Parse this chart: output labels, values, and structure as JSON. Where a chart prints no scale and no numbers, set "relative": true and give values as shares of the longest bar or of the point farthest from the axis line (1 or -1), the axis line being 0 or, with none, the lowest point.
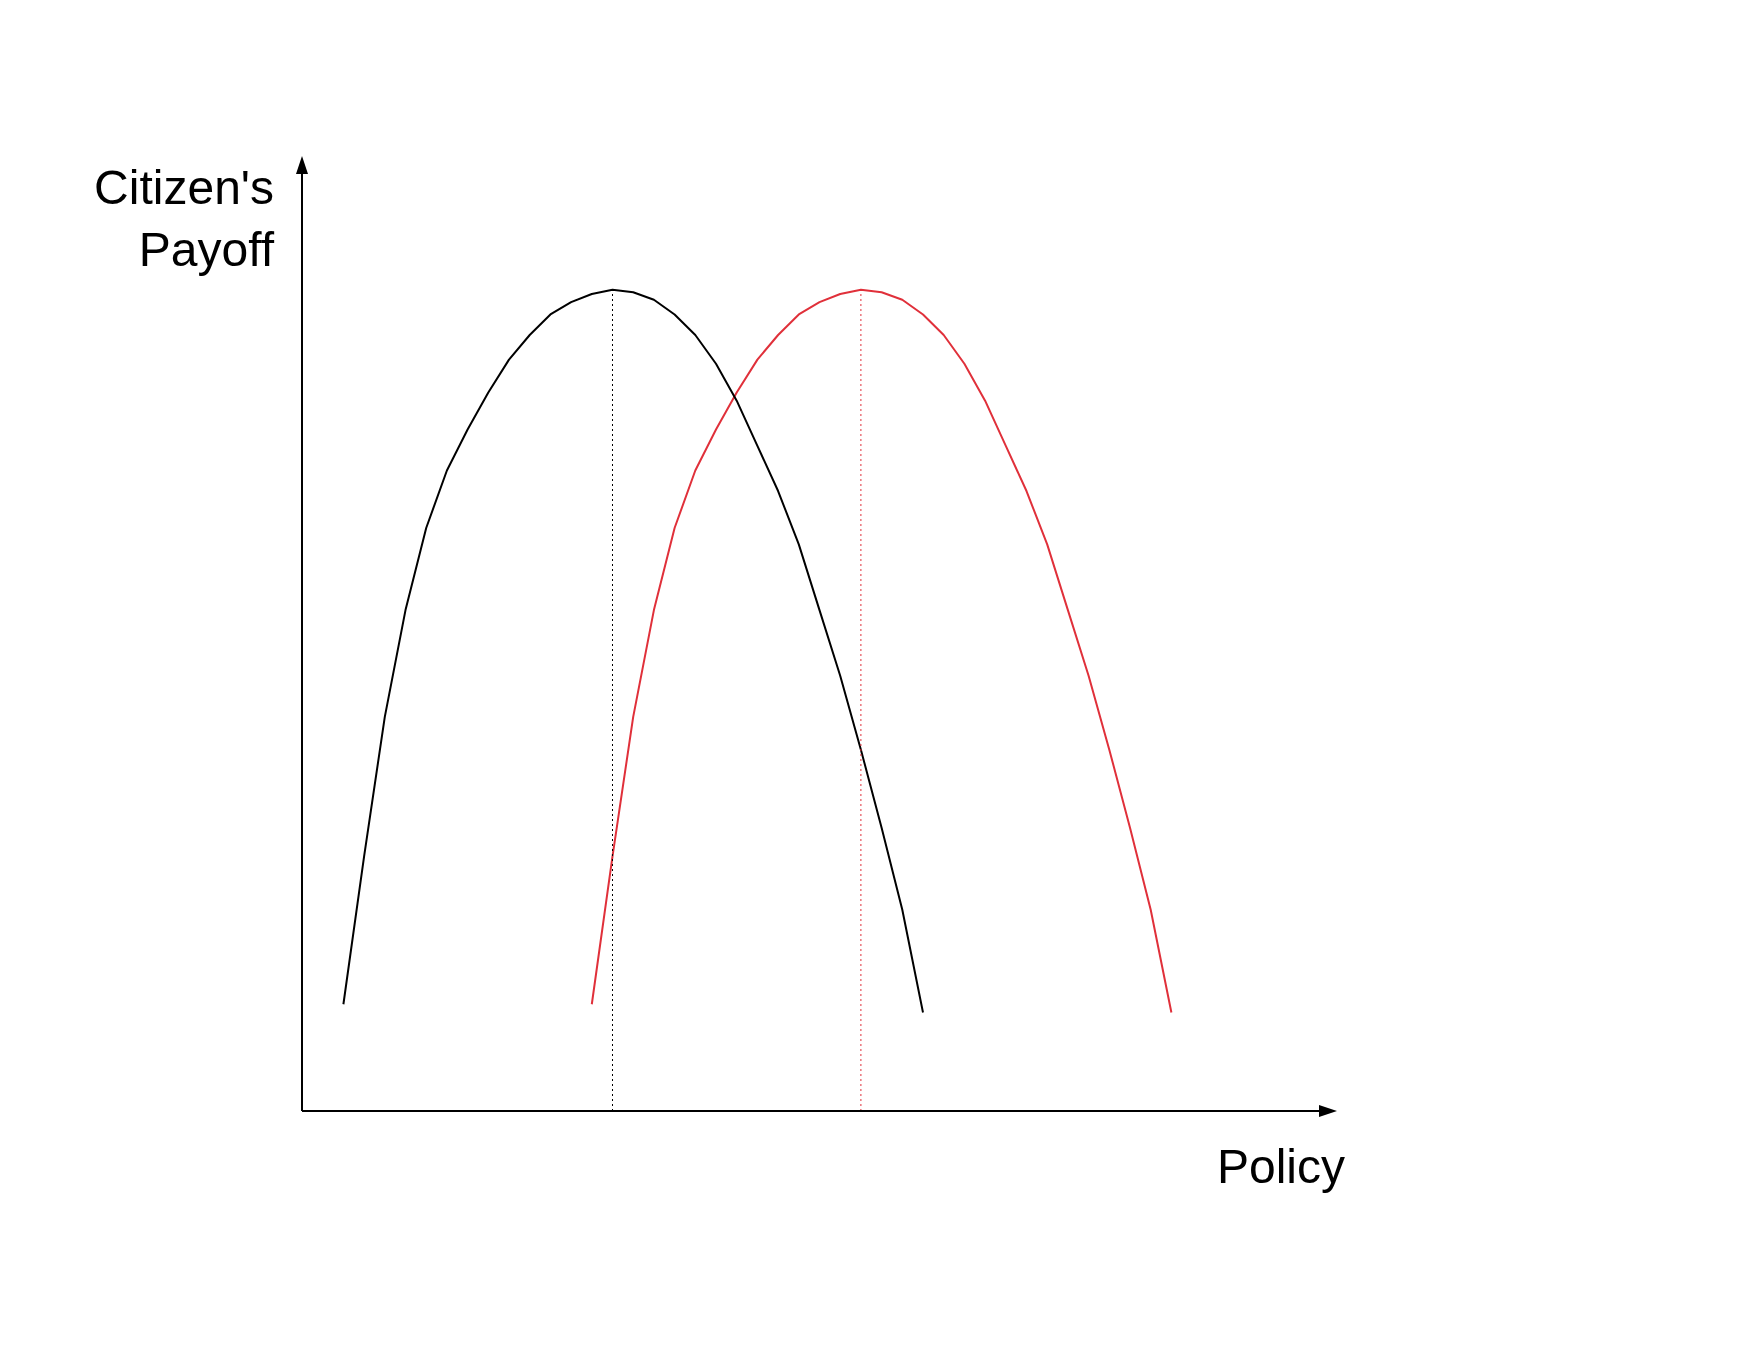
{
  "chart_data": {
    "type": "line",
    "relative": true,
    "xlabel": "Policy",
    "ylabel": "Citizen's\nPayoff",
    "legend": false,
    "grid": false,
    "marker": "none",
    "line_style": "solid",
    "categories": [
      null,
      null,
      null,
      null,
      null,
      null,
      null,
      null,
      null,
      null,
      null,
      null,
      null,
      null,
      null,
      null,
      null,
      null,
      null,
      null,
      null,
      null,
      null,
      null,
      null,
      null,
      null,
      null,
      null,
      null,
      null,
      null,
      null,
      null,
      null,
      null,
      null,
      null,
      null,
      null,
      null,
      null,
      null,
      null,
      null,
      null,
      null,
      null,
      null,
      null,
      null
    ],
    "series": [
      {
        "color": "#000000",
        "values": [
          null,
          null,
          0.13,
          0.31,
          0.48,
          0.61,
          0.71,
          0.78,
          0.83,
          0.875,
          0.915,
          0.945,
          0.97,
          0.985,
          0.995,
          1,
          0.997,
          0.988,
          0.97,
          0.945,
          0.91,
          0.865,
          0.81,
          0.755,
          0.69,
          0.61,
          0.53,
          0.44,
          0.345,
          0.245,
          0.12,
          null,
          null,
          null,
          null,
          null,
          null,
          null,
          null,
          null,
          null,
          null,
          null,
          null,
          null,
          null,
          null,
          null,
          null,
          null,
          null
        ]
      },
      {
        "color": "#e0303a",
        "values": [
          null,
          null,
          null,
          null,
          null,
          null,
          null,
          null,
          null,
          null,
          null,
          null,
          null,
          null,
          0.13,
          0.31,
          0.48,
          0.61,
          0.71,
          0.78,
          0.83,
          0.875,
          0.915,
          0.945,
          0.97,
          0.985,
          0.995,
          1,
          0.997,
          0.988,
          0.97,
          0.945,
          0.91,
          0.865,
          0.81,
          0.755,
          0.69,
          0.61,
          0.53,
          0.44,
          0.345,
          0.245,
          0.12,
          null,
          null,
          null,
          null,
          null,
          null,
          null,
          null
        ]
      }
    ]
  }
}
